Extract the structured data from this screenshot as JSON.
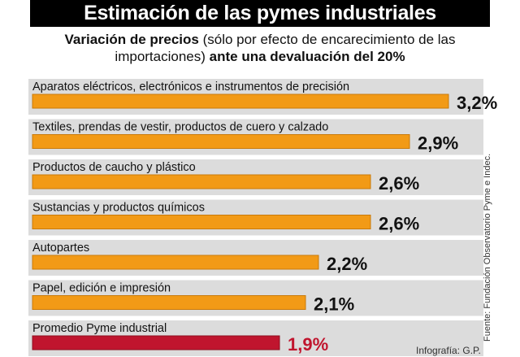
{
  "header": {
    "title": "Estimación de las pymes industriales",
    "subtitle_bold_1": "Variación de precios",
    "subtitle_normal": " (sólo por efecto de encarecimiento de las importaciones) ",
    "subtitle_bold_2": "ante una devaluación del 20%"
  },
  "source": "Fuente: Fundación Observatorio Pyme e Indec.",
  "credit": "Infografía: G.P.",
  "colors": {
    "bar": "#F29A16",
    "bar_stroke": "#C97A0A",
    "highlight": "#C0152E",
    "highlight_stroke": "#8E0E20",
    "band": "#DCDCDC",
    "value_text": "#111111",
    "highlight_text": "#C0152E"
  },
  "chart_data": {
    "type": "bar",
    "orientation": "horizontal",
    "categories": [
      "Aparatos eléctricos, electrónicos e instrumentos de precisión",
      "Textiles, prendas de vestir, productos de cuero y calzado",
      "Productos de caucho y plástico",
      "Sustancias y productos químicos",
      "Autopartes",
      "Papel, edición e impresión",
      "Promedio Pyme industrial"
    ],
    "values": [
      3.2,
      2.9,
      2.6,
      2.6,
      2.2,
      2.1,
      1.9
    ],
    "value_labels": [
      "3,2%",
      "2,9%",
      "2,6%",
      "2,6%",
      "2,2%",
      "2,1%",
      "1,9%"
    ],
    "highlight_index": 6,
    "xlim": [
      0,
      3.2
    ]
  }
}
